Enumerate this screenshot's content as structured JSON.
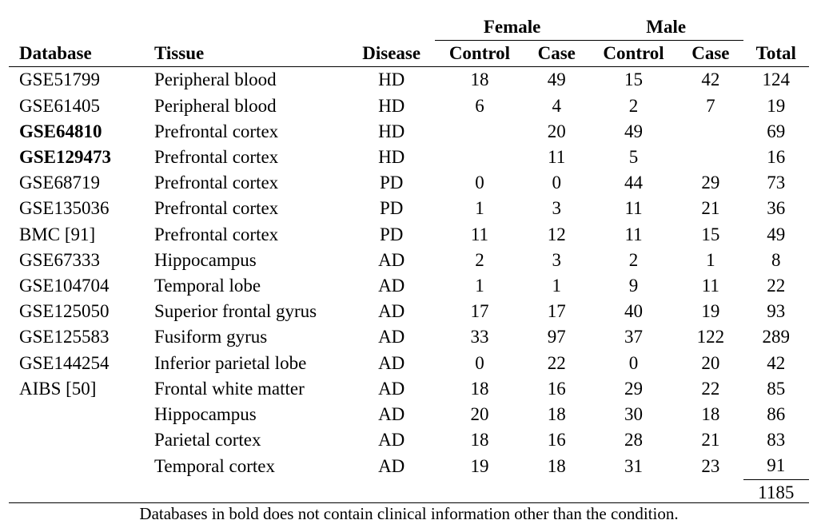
{
  "header": {
    "group_female": "Female",
    "group_male": "Male",
    "col_database": "Database",
    "col_tissue": "Tissue",
    "col_disease": "Disease",
    "col_female_control": "Control",
    "col_female_case": "Case",
    "col_male_control": "Control",
    "col_male_case": "Case",
    "col_total": "Total"
  },
  "rows": [
    {
      "db": "GSE51799",
      "bold": false,
      "tissue": "Peripheral blood",
      "disease": "HD",
      "fc": "18",
      "fca": "49",
      "mc": "15",
      "mca": "42",
      "total": "124"
    },
    {
      "db": "GSE61405",
      "bold": false,
      "tissue": "Peripheral blood",
      "disease": "HD",
      "fc": "6",
      "fca": "4",
      "mc": "2",
      "mca": "7",
      "total": "19"
    },
    {
      "db": "GSE64810",
      "bold": true,
      "tissue": "Prefrontal cortex",
      "disease": "HD",
      "fc": "",
      "fca": "20",
      "mc": "49",
      "mca": "",
      "total": "69"
    },
    {
      "db": "GSE129473",
      "bold": true,
      "tissue": "Prefrontal cortex",
      "disease": "HD",
      "fc": "",
      "fca": "11",
      "mc": "5",
      "mca": "",
      "total": "16"
    },
    {
      "db": "GSE68719",
      "bold": false,
      "tissue": "Prefrontal cortex",
      "disease": "PD",
      "fc": "0",
      "fca": "0",
      "mc": "44",
      "mca": "29",
      "total": "73"
    },
    {
      "db": "GSE135036",
      "bold": false,
      "tissue": "Prefrontal cortex",
      "disease": "PD",
      "fc": "1",
      "fca": "3",
      "mc": "11",
      "mca": "21",
      "total": "36"
    },
    {
      "db": "BMC [91]",
      "bold": false,
      "tissue": "Prefrontal cortex",
      "disease": "PD",
      "fc": "11",
      "fca": "12",
      "mc": "11",
      "mca": "15",
      "total": "49"
    },
    {
      "db": "GSE67333",
      "bold": false,
      "tissue": "Hippocampus",
      "disease": "AD",
      "fc": "2",
      "fca": "3",
      "mc": "2",
      "mca": "1",
      "total": "8"
    },
    {
      "db": "GSE104704",
      "bold": false,
      "tissue": "Temporal lobe",
      "disease": "AD",
      "fc": "1",
      "fca": "1",
      "mc": "9",
      "mca": "11",
      "total": "22"
    },
    {
      "db": "GSE125050",
      "bold": false,
      "tissue": "Superior frontal gyrus",
      "disease": "AD",
      "fc": "17",
      "fca": "17",
      "mc": "40",
      "mca": "19",
      "total": "93"
    },
    {
      "db": "GSE125583",
      "bold": false,
      "tissue": "Fusiform gyrus",
      "disease": "AD",
      "fc": "33",
      "fca": "97",
      "mc": "37",
      "mca": "122",
      "total": "289"
    },
    {
      "db": "GSE144254",
      "bold": false,
      "tissue": "Inferior parietal lobe",
      "disease": "AD",
      "fc": "0",
      "fca": "22",
      "mc": "0",
      "mca": "20",
      "total": "42"
    },
    {
      "db": "AIBS [50]",
      "bold": false,
      "tissue": "Frontal white matter",
      "disease": "AD",
      "fc": "18",
      "fca": "16",
      "mc": "29",
      "mca": "22",
      "total": "85"
    },
    {
      "db": "",
      "bold": false,
      "tissue": "Hippocampus",
      "disease": "AD",
      "fc": "20",
      "fca": "18",
      "mc": "30",
      "mca": "18",
      "total": "86"
    },
    {
      "db": "",
      "bold": false,
      "tissue": "Parietal cortex",
      "disease": "AD",
      "fc": "18",
      "fca": "16",
      "mc": "28",
      "mca": "21",
      "total": "83"
    },
    {
      "db": "",
      "bold": false,
      "tissue": "Temporal cortex",
      "disease": "AD",
      "fc": "19",
      "fca": "18",
      "mc": "31",
      "mca": "23",
      "total": "91"
    }
  ],
  "grand_total": "1185",
  "footnote": "Databases in bold does not contain clinical information other than the condition."
}
